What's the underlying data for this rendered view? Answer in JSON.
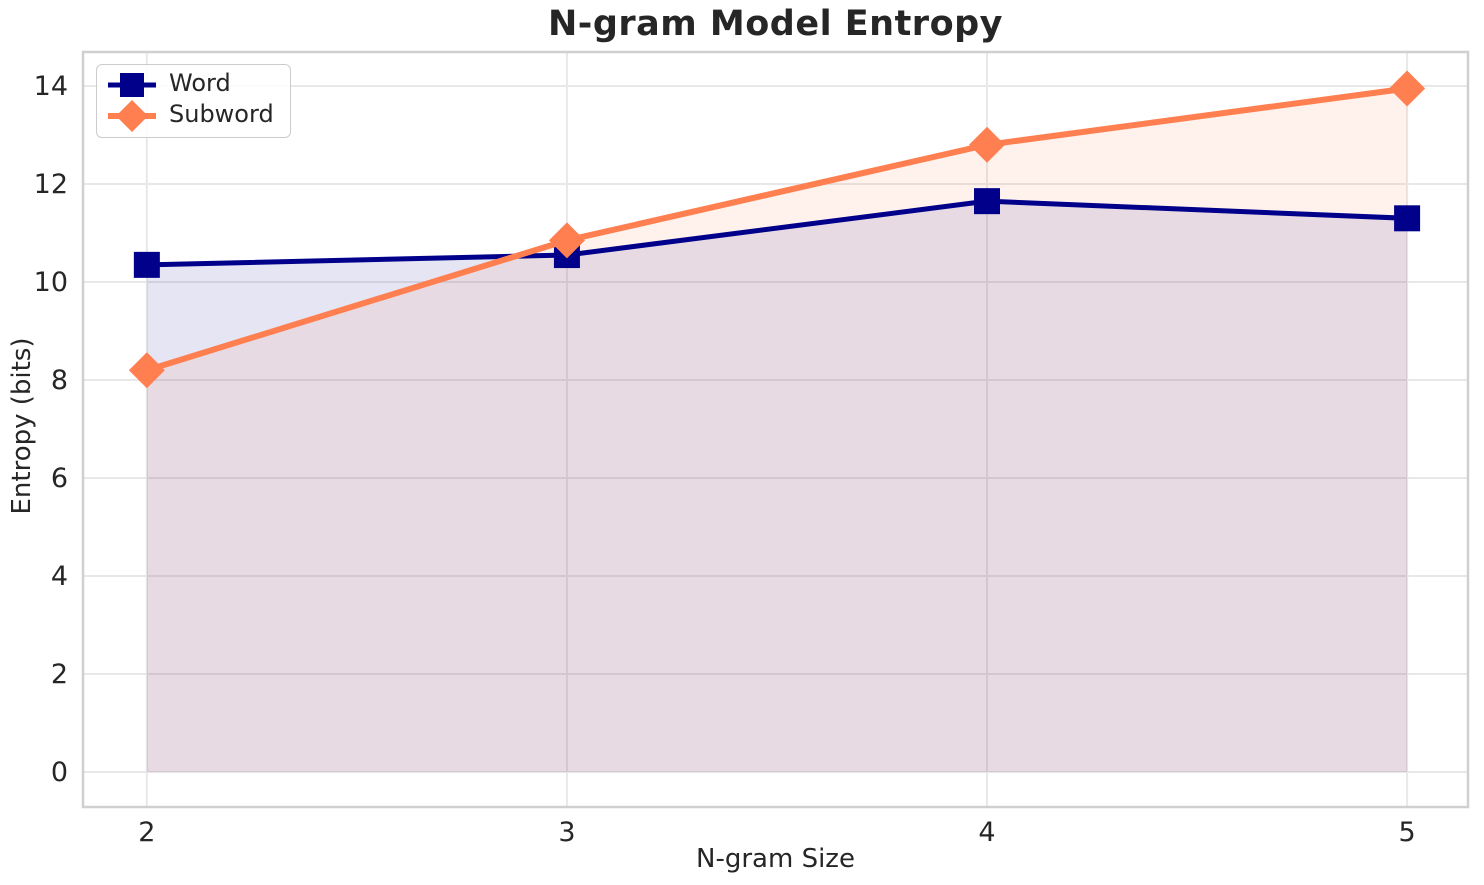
{
  "chart_data": {
    "type": "line",
    "title": "N-gram Model Entropy",
    "xlabel": "N-gram Size",
    "ylabel": "Entropy (bits)",
    "x": [
      2,
      3,
      4,
      5
    ],
    "series": [
      {
        "name": "Word",
        "values": [
          10.35,
          10.55,
          11.65,
          11.3
        ],
        "color": "#00008B",
        "marker": "square",
        "line_width": 5,
        "fill_alpha": 0.1
      },
      {
        "name": "Subword",
        "values": [
          8.2,
          10.85,
          12.8,
          13.95
        ],
        "color": "#FF7F50",
        "marker": "diamond",
        "line_width": 6,
        "fill_alpha": 0.1
      }
    ],
    "xticks": [
      "2",
      "3",
      "4",
      "5"
    ],
    "xtick_values": [
      2,
      3,
      4,
      5
    ],
    "yticks": [
      "0",
      "2",
      "4",
      "6",
      "8",
      "10",
      "12",
      "14"
    ],
    "ytick_values": [
      0,
      2,
      4,
      6,
      8,
      10,
      12,
      14
    ],
    "xlim": [
      1.848,
      5.145
    ],
    "ylim": [
      -0.714,
      14.694
    ],
    "area_fill_baseline": 0,
    "grid": true,
    "legend_position": "upper-left"
  },
  "style": {
    "background": "#ffffff",
    "text_color": "#262626",
    "grid_color": "#e8e8e8",
    "spine_color": "#d0d0d0"
  }
}
